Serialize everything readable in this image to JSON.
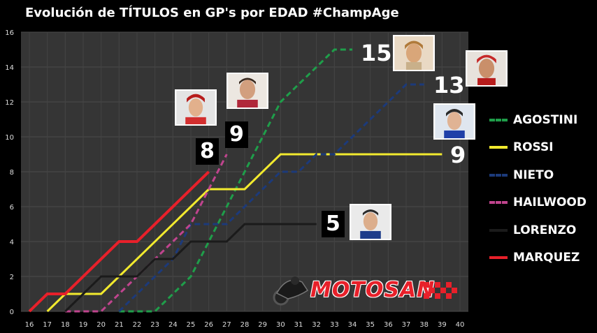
{
  "title": "Evolución de TÍTULOS en GP's por EDAD #ChampAge",
  "chart_data": {
    "type": "line",
    "title": "Evolución de TÍTULOS en GP's por EDAD #ChampAge",
    "xlabel": "",
    "ylabel": "",
    "x": [
      16,
      17,
      18,
      19,
      20,
      21,
      22,
      23,
      24,
      25,
      26,
      27,
      28,
      29,
      30,
      31,
      32,
      33,
      34,
      35,
      36,
      37,
      38,
      39,
      40
    ],
    "xlim": [
      16,
      40
    ],
    "ylim": [
      0,
      16
    ],
    "yticks": [
      0,
      2,
      4,
      6,
      8,
      10,
      12,
      14,
      16
    ],
    "grid": true,
    "legend_position": "right",
    "series": [
      {
        "name": "AGOSTINI",
        "color": "#1f9e4a",
        "dashed": true,
        "points": [
          [
            21,
            0
          ],
          [
            23,
            0
          ],
          [
            25,
            2
          ],
          [
            27,
            6
          ],
          [
            28,
            8
          ],
          [
            30,
            12
          ],
          [
            33,
            15
          ],
          [
            34,
            15
          ]
        ]
      },
      {
        "name": "ROSSI",
        "color": "#f2ea2e",
        "dashed": false,
        "points": [
          [
            17,
            0
          ],
          [
            18,
            1
          ],
          [
            19,
            1
          ],
          [
            20,
            1
          ],
          [
            21,
            2
          ],
          [
            26,
            7
          ],
          [
            28,
            7
          ],
          [
            30,
            9
          ],
          [
            39,
            9
          ]
        ]
      },
      {
        "name": "NIETO",
        "color": "#1c3a7a",
        "dashed": true,
        "points": [
          [
            21,
            0
          ],
          [
            22,
            1
          ],
          [
            23,
            2
          ],
          [
            24,
            3
          ],
          [
            25,
            5
          ],
          [
            27,
            5
          ],
          [
            28,
            6
          ],
          [
            30,
            8
          ],
          [
            31,
            8
          ],
          [
            32,
            9
          ],
          [
            33,
            9
          ],
          [
            37,
            13
          ],
          [
            38,
            13
          ]
        ]
      },
      {
        "name": "HAILWOOD",
        "color": "#c0448e",
        "dashed": true,
        "points": [
          [
            18,
            0
          ],
          [
            20,
            0
          ],
          [
            21,
            1
          ],
          [
            22,
            2
          ],
          [
            23,
            3
          ],
          [
            24,
            4
          ],
          [
            25,
            5
          ],
          [
            26,
            7
          ],
          [
            27,
            9
          ]
        ]
      },
      {
        "name": "LORENZO",
        "color": "#1b1b1b",
        "dashed": false,
        "points": [
          [
            18,
            0
          ],
          [
            20,
            2
          ],
          [
            22,
            2
          ],
          [
            23,
            3
          ],
          [
            24,
            3
          ],
          [
            25,
            4
          ],
          [
            27,
            4
          ],
          [
            28,
            5
          ],
          [
            32,
            5
          ]
        ]
      },
      {
        "name": "MARQUEZ",
        "color": "#e8202a",
        "dashed": false,
        "points": [
          [
            16,
            0
          ],
          [
            17,
            1
          ],
          [
            18,
            1
          ],
          [
            21,
            4
          ],
          [
            22,
            4
          ],
          [
            26,
            8
          ]
        ]
      }
    ],
    "end_labels": [
      {
        "series": "AGOSTINI",
        "text": "15"
      },
      {
        "series": "NIETO",
        "text": "13"
      },
      {
        "series": "ROSSI",
        "text": "9"
      },
      {
        "series": "HAILWOOD",
        "text": "9"
      },
      {
        "series": "MARQUEZ",
        "text": "8"
      },
      {
        "series": "LORENZO",
        "text": "5"
      }
    ]
  },
  "legend": [
    {
      "label": "AGOSTINI",
      "color": "#1f9e4a",
      "dashed": true
    },
    {
      "label": "ROSSI",
      "color": "#f2ea2e",
      "dashed": false
    },
    {
      "label": "NIETO",
      "color": "#1c3a7a",
      "dashed": true
    },
    {
      "label": "HAILWOOD",
      "color": "#c0448e",
      "dashed": true
    },
    {
      "label": "LORENZO",
      "color": "#1b1b1b",
      "dashed": false
    },
    {
      "label": "MARQUEZ",
      "color": "#e8202a",
      "dashed": false
    }
  ],
  "logo": {
    "text": "MOTOSAN"
  },
  "avatars": [
    {
      "name": "avatar-agostini",
      "icon": "rider-portrait-icon"
    },
    {
      "name": "avatar-nieto",
      "icon": "rider-portrait-icon"
    },
    {
      "name": "avatar-rossi",
      "icon": "rider-portrait-icon"
    },
    {
      "name": "avatar-hailwood",
      "icon": "rider-portrait-icon"
    },
    {
      "name": "avatar-marquez",
      "icon": "rider-portrait-icon"
    },
    {
      "name": "avatar-lorenzo",
      "icon": "rider-portrait-icon"
    }
  ]
}
